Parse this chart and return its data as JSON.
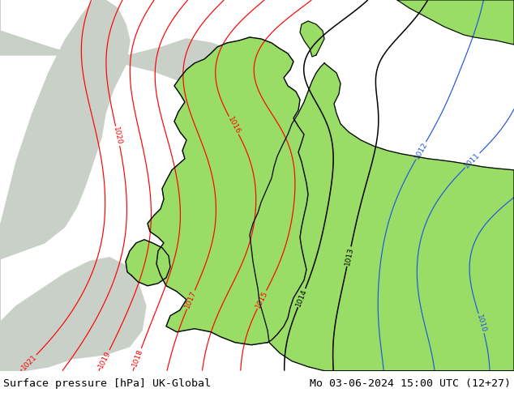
{
  "title_left": "Surface pressure [hPa] UK-Global",
  "title_right": "Mo 03-06-2024 15:00 UTC (12+27)",
  "caption_text_color": "#000000",
  "caption_font_size": 9.5,
  "fig_width": 6.34,
  "fig_height": 4.9,
  "land_green": "#99dd66",
  "sea_gray": "#c8d0c8",
  "sea_white": "#e8e8e8",
  "outside_gray": "#b0b8b8"
}
